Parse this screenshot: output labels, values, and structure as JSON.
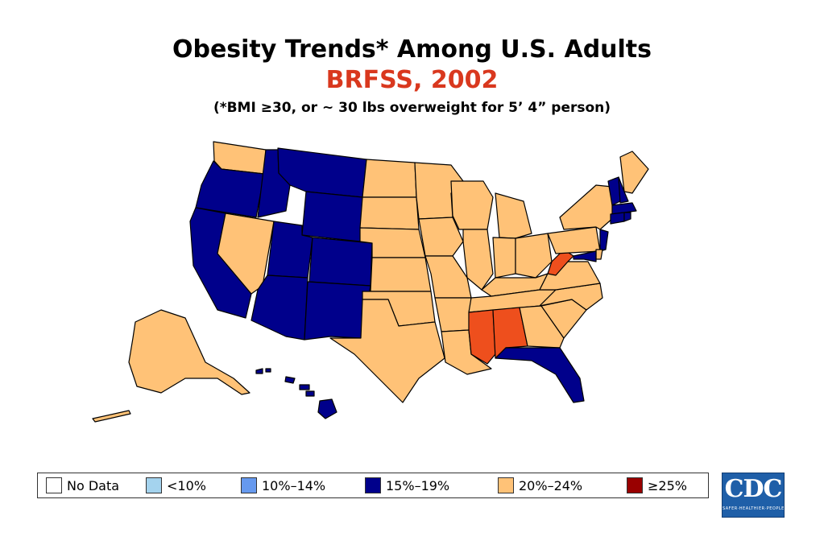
{
  "header": {
    "title": "Obesity Trends* Among U.S. Adults",
    "subtitle": "BRFSS, 2002",
    "note": "(*BMI ≥30, or ~ 30 lbs overweight for 5’ 4” person)"
  },
  "colors": {
    "no_data": "#ffffff",
    "lt10": "#a4d3ee",
    "10to14": "#6699ee",
    "15to19": "#00008b",
    "20to24": "#ffc277",
    "ge25": "#990000",
    "highlight": "#ee4f1d",
    "title_accent": "#d9381e"
  },
  "legend": [
    {
      "label": "No Data",
      "color": "#ffffff"
    },
    {
      "label": "<10%",
      "color": "#a4d3ee"
    },
    {
      "label": "10%–14%",
      "color": "#6699ee"
    },
    {
      "label": "15%–19%",
      "color": "#00008b"
    },
    {
      "label": "20%–24%",
      "color": "#ffc277"
    },
    {
      "label": "≥25%",
      "color": "#990000"
    }
  ],
  "map": {
    "category_15_19": [
      "WA-OR border region: Oregon",
      "Idaho",
      "Montana",
      "Wyoming",
      "California",
      "Utah",
      "Colorado",
      "Arizona",
      "New Mexico",
      "Florida",
      "Vermont",
      "New Hampshire",
      "Massachusetts",
      "Connecticut",
      "Rhode Island",
      "New Jersey",
      "Maryland",
      "Hawaii"
    ],
    "category_20_24": [
      "Washington",
      "Nevada",
      "North Dakota",
      "South Dakota",
      "Nebraska",
      "Kansas",
      "Oklahoma",
      "Texas",
      "Minnesota",
      "Iowa",
      "Missouri",
      "Arkansas",
      "Louisiana",
      "Wisconsin",
      "Illinois",
      "Michigan",
      "Indiana",
      "Ohio",
      "Kentucky",
      "Tennessee",
      "Georgia",
      "South Carolina",
      "North Carolina",
      "Virginia",
      "Pennsylvania",
      "New York",
      "Maine",
      "Delaware",
      "Alaska"
    ],
    "highlighted": [
      "West Virginia",
      "Mississippi",
      "Alabama"
    ]
  },
  "logo": {
    "text": "CDC",
    "tagline": "SAFER·HEALTHIER·PEOPLE"
  }
}
